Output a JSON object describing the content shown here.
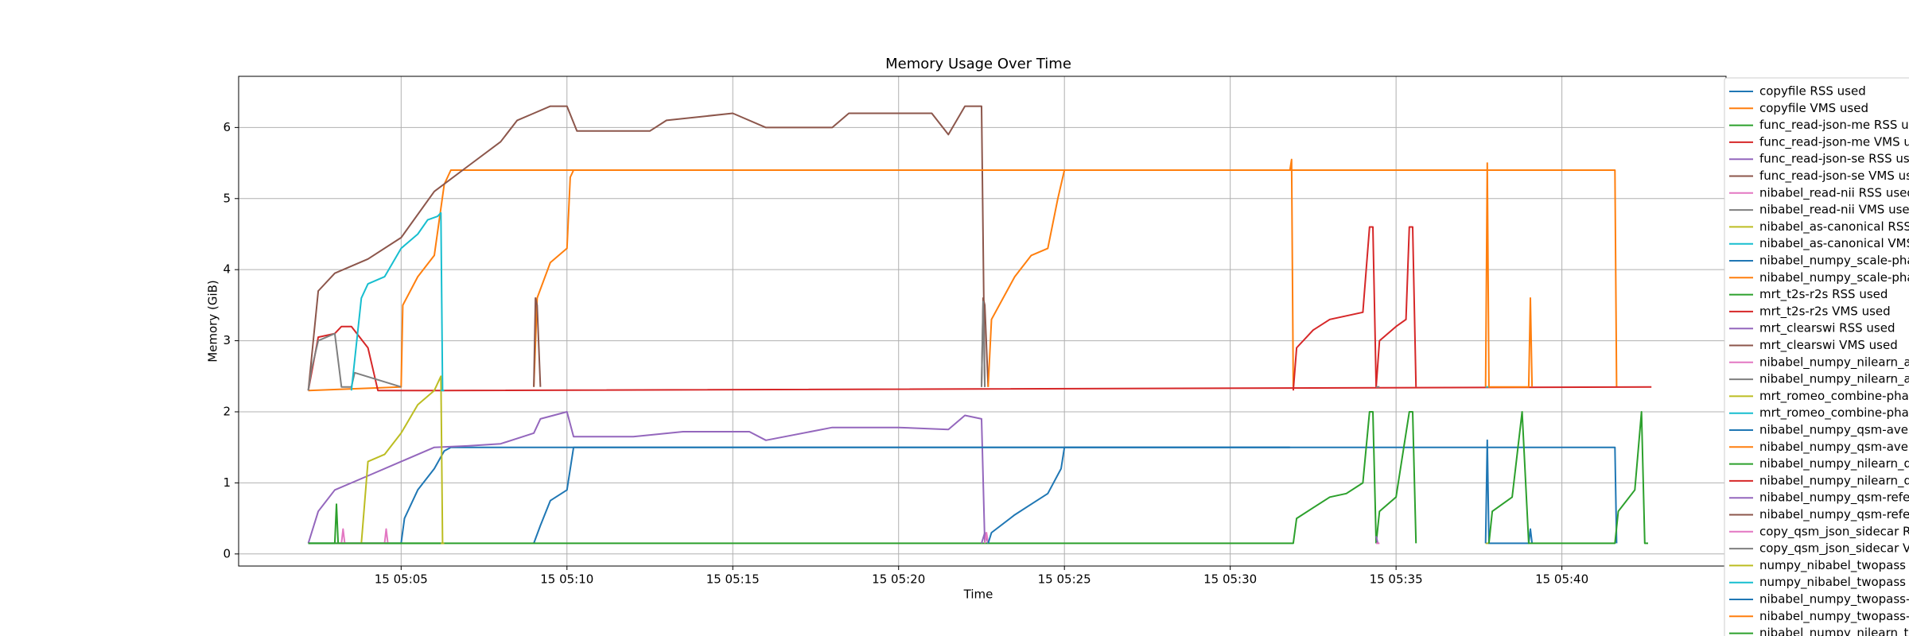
{
  "chart_data": {
    "type": "line",
    "title": "Memory Usage Over Time",
    "x_label": "Time",
    "y_label": "Memory (GiB)",
    "xlim": [
      0.1,
      44.95
    ],
    "ylim": [
      -0.17,
      6.72
    ],
    "xticks": [
      {
        "value": 5,
        "label": "15 05:05"
      },
      {
        "value": 10,
        "label": "15 05:10"
      },
      {
        "value": 15,
        "label": "15 05:15"
      },
      {
        "value": 20,
        "label": "15 05:20"
      },
      {
        "value": 25,
        "label": "15 05:25"
      },
      {
        "value": 30,
        "label": "15 05:30"
      },
      {
        "value": 35,
        "label": "15 05:35"
      },
      {
        "value": 40,
        "label": "15 05:40"
      }
    ],
    "yticks": [
      0,
      1,
      2,
      3,
      4,
      5,
      6
    ],
    "grid": true,
    "series": [
      {
        "name": "copyfile RSS used",
        "color": "#1f77b4",
        "x": [
          2.2,
          5.0,
          5.1,
          5.5,
          6.0,
          6.3,
          6.5,
          41.6,
          41.65
        ],
        "values": [
          0.15,
          0.15,
          0.5,
          0.9,
          1.2,
          1.45,
          1.5,
          1.5,
          0.15
        ]
      },
      {
        "name": "copyfile VMS used",
        "color": "#ff7f0e",
        "x": [
          2.2,
          5.0,
          5.05,
          5.5,
          6.0,
          6.3,
          6.5,
          41.6,
          41.65
        ],
        "values": [
          2.3,
          2.35,
          3.5,
          3.9,
          4.2,
          5.2,
          5.4,
          5.4,
          2.35
        ]
      },
      {
        "name": "func_read-json-me RSS use",
        "color": "#2ca02c",
        "x": [
          2.2,
          3.0,
          3.05,
          3.1,
          6.2
        ],
        "values": [
          0.15,
          0.15,
          0.7,
          0.15,
          0.15
        ]
      },
      {
        "name": "func_read-json-me VMS use",
        "color": "#d62728",
        "x": [
          2.2,
          2.5,
          3.0,
          3.2,
          3.5,
          4.0,
          4.3,
          6.2,
          42.7
        ],
        "values": [
          2.3,
          3.05,
          3.1,
          3.2,
          3.2,
          2.9,
          2.3,
          2.3,
          2.35
        ]
      },
      {
        "name": "func_read-json-se RSS use",
        "color": "#9467bd",
        "x": [
          2.2,
          2.5,
          3,
          4,
          5,
          6,
          7,
          8,
          9,
          9.2,
          10,
          10.2,
          12,
          13.5,
          15.5,
          16,
          18,
          20,
          21.5,
          22,
          22.5,
          22.6
        ],
        "values": [
          0.15,
          0.6,
          0.9,
          1.1,
          1.3,
          1.5,
          1.52,
          1.55,
          1.7,
          1.9,
          2.0,
          1.65,
          1.65,
          1.72,
          1.72,
          1.6,
          1.78,
          1.78,
          1.75,
          1.95,
          1.9,
          0.15
        ]
      },
      {
        "name": "func_read-json-se VMS use",
        "color": "#8c564b",
        "x": [
          2.2,
          2.5,
          3,
          4,
          5,
          6,
          7,
          8,
          8.5,
          9,
          9.5,
          10,
          10.3,
          12.5,
          13,
          15,
          16,
          18,
          18.5,
          21,
          21.5,
          22,
          22.5,
          22.6
        ],
        "values": [
          2.3,
          3.7,
          3.95,
          4.15,
          4.45,
          5.1,
          5.45,
          5.8,
          6.1,
          6.2,
          6.3,
          6.3,
          5.95,
          5.95,
          6.1,
          6.2,
          6.0,
          6.0,
          6.2,
          6.2,
          5.9,
          6.3,
          6.3,
          2.35
        ]
      },
      {
        "name": "nibabel_read-nii RSS used",
        "color": "#e377c2",
        "x": [
          3.0,
          3.2,
          3.25,
          3.3,
          4.5,
          4.55,
          4.6
        ],
        "values": [
          0.15,
          0.15,
          0.35,
          0.15,
          0.15,
          0.35,
          0.15
        ]
      },
      {
        "name": "nibabel_read-nii VMS used",
        "color": "#7f7f7f",
        "x": [
          2.2,
          2.3,
          2.5,
          3,
          3.2,
          3.5,
          3.6,
          5
        ],
        "values": [
          2.3,
          2.6,
          3.0,
          3.1,
          2.35,
          2.35,
          2.55,
          2.35
        ]
      },
      {
        "name": "nibabel_as-canonical RSS u",
        "color": "#bcbd22",
        "x": [
          3.8,
          4.0,
          4.5,
          5.0,
          5.5,
          6.0,
          6.2,
          6.25
        ],
        "values": [
          0.15,
          1.3,
          1.4,
          1.7,
          2.1,
          2.3,
          2.5,
          0.15
        ]
      },
      {
        "name": "nibabel_as-canonical VMS u",
        "color": "#17becf",
        "x": [
          3.5,
          3.8,
          4.0,
          4.5,
          5.0,
          5.5,
          5.8,
          6.1,
          6.2,
          6.25
        ],
        "values": [
          2.3,
          3.6,
          3.8,
          3.9,
          4.3,
          4.5,
          4.7,
          4.75,
          4.8,
          2.3
        ]
      },
      {
        "name": "nibabel_numpy_scale-phas",
        "color": "#1f77b4",
        "x": [
          9.0,
          9.2,
          9.5,
          10.0,
          10.2,
          31.8
        ],
        "values": [
          0.15,
          0.4,
          0.75,
          0.9,
          1.5,
          1.5
        ]
      },
      {
        "name": "nibabel_numpy_scale-phas",
        "color": "#ff7f0e",
        "x": [
          9.0,
          9.1,
          9.5,
          10.0,
          10.1,
          10.2,
          31.8,
          31.85,
          31.9
        ],
        "values": [
          2.35,
          3.6,
          4.1,
          4.3,
          5.3,
          5.4,
          5.4,
          5.55,
          2.35
        ]
      },
      {
        "name": "mrt_t2s-r2s RSS used",
        "color": "#2ca02c",
        "x": [
          2.2,
          31.9,
          32.0,
          32.5,
          33.0,
          33.5,
          34.0,
          34.2,
          34.3,
          34.4
        ],
        "values": [
          0.15,
          0.15,
          0.5,
          0.65,
          0.8,
          0.85,
          1.0,
          2.0,
          2.0,
          0.15
        ]
      },
      {
        "name": "mrt_t2s-r2s VMS used",
        "color": "#d62728",
        "x": [
          31.9,
          32.0,
          32.5,
          33.0,
          33.5,
          34.0,
          34.2,
          34.3,
          34.4
        ],
        "values": [
          2.3,
          2.9,
          3.15,
          3.3,
          3.35,
          3.4,
          4.6,
          4.6,
          2.35
        ]
      },
      {
        "name": "mrt_clearswi RSS used",
        "color": "#9467bd",
        "x": [
          22.5,
          22.6,
          22.7
        ],
        "values": [
          0.15,
          0.3,
          0.15
        ]
      },
      {
        "name": "mrt_clearswi VMS used",
        "color": "#8c564b",
        "x": [
          22.5,
          22.55,
          22.6,
          22.7
        ],
        "values": [
          2.35,
          3.6,
          3.5,
          2.35
        ]
      },
      {
        "name": "nibabel_numpy_nilearn_axi",
        "color": "#e377c2",
        "x": [
          22.6,
          22.65,
          22.7
        ],
        "values": [
          0.15,
          0.3,
          0.15
        ]
      },
      {
        "name": "nibabel_numpy_nilearn_axi",
        "color": "#7f7f7f",
        "x": [
          22.5,
          22.55,
          22.6
        ],
        "values": [
          2.35,
          3.55,
          2.35
        ]
      },
      {
        "name": "mrt_romeo_combine-phase",
        "color": "#bcbd22",
        "x": [
          6.2,
          6.3
        ],
        "values": [
          0.15,
          0.15
        ]
      },
      {
        "name": "mrt_romeo_combine-phase",
        "color": "#17becf",
        "x": [
          6.2,
          6.3
        ],
        "values": [
          2.3,
          2.3
        ]
      },
      {
        "name": "nibabel_numpy_qsm-avera",
        "color": "#1f77b4",
        "x": [
          22.7,
          22.8,
          23.5,
          24,
          24.5,
          24.9,
          25.0,
          31.8
        ],
        "values": [
          0.15,
          0.3,
          0.55,
          0.7,
          0.85,
          1.2,
          1.5,
          1.5
        ]
      },
      {
        "name": "nibabel_numpy_qsm-avera",
        "color": "#ff7f0e",
        "x": [
          22.7,
          22.8,
          23.5,
          24,
          24.5,
          24.8,
          25.0
        ],
        "values": [
          2.35,
          3.3,
          3.9,
          4.2,
          4.3,
          5.0,
          5.4
        ]
      },
      {
        "name": "nibabel_numpy_nilearn_qsr",
        "color": "#2ca02c",
        "x": [
          34.4,
          34.5,
          35,
          35.4,
          35.5,
          35.6
        ],
        "values": [
          0.15,
          0.6,
          0.8,
          2.0,
          2.0,
          0.15
        ]
      },
      {
        "name": "nibabel_numpy_nilearn_qsr",
        "color": "#d62728",
        "x": [
          34.4,
          34.5,
          35,
          35.3,
          35.4,
          35.5,
          35.6
        ],
        "values": [
          2.35,
          3.0,
          3.2,
          3.3,
          4.6,
          4.6,
          2.35
        ]
      },
      {
        "name": "nibabel_numpy_qsm-refere",
        "color": "#9467bd",
        "x": [
          34.4,
          34.45
        ],
        "values": [
          0.25,
          0.15
        ]
      },
      {
        "name": "nibabel_numpy_qsm-refere",
        "color": "#8c564b",
        "x": [
          9.0,
          9.05,
          9.1,
          9.2
        ],
        "values": [
          2.35,
          3.6,
          3.5,
          2.35
        ]
      },
      {
        "name": "copy_qsm_json_sidecar RS",
        "color": "#e377c2",
        "x": [
          34.4,
          34.5
        ],
        "values": [
          0.15,
          0.15
        ]
      },
      {
        "name": "copy_qsm_json_sidecar VM",
        "color": "#7f7f7f",
        "x": [
          34.4,
          34.5
        ],
        "values": [
          2.35,
          2.35
        ]
      },
      {
        "name": "numpy_nibabel_twopass RS",
        "color": "#bcbd22",
        "x": [
          37.7,
          37.8
        ],
        "values": [
          0.15,
          0.15
        ]
      },
      {
        "name": "numpy_nibabel_twopass V",
        "color": "#17becf",
        "x": [
          37.7,
          37.8
        ],
        "values": [
          2.35,
          2.35
        ]
      },
      {
        "name": "nibabel_numpy_twopass-av",
        "color": "#1f77b4",
        "x": [
          37.7,
          37.75,
          37.8,
          39.0,
          39.05,
          39.1
        ],
        "values": [
          0.15,
          1.6,
          0.15,
          0.15,
          0.35,
          0.15
        ]
      },
      {
        "name": "nibabel_numpy_twopass-av",
        "color": "#ff7f0e",
        "x": [
          37.7,
          37.75,
          37.8,
          39.0,
          39.05,
          39.1
        ],
        "values": [
          2.35,
          5.5,
          2.35,
          2.35,
          3.6,
          2.35
        ]
      },
      {
        "name": "nibabel_numpy_nilearn_two",
        "color": "#2ca02c",
        "x": [
          37.8,
          37.9,
          38.5,
          38.8,
          39.0,
          41.6,
          41.7,
          42.2,
          42.4,
          42.5,
          42.6
        ],
        "values": [
          0.15,
          0.6,
          0.8,
          2.0,
          0.15,
          0.15,
          0.6,
          0.9,
          2.0,
          0.15,
          0.15
        ]
      }
    ]
  }
}
